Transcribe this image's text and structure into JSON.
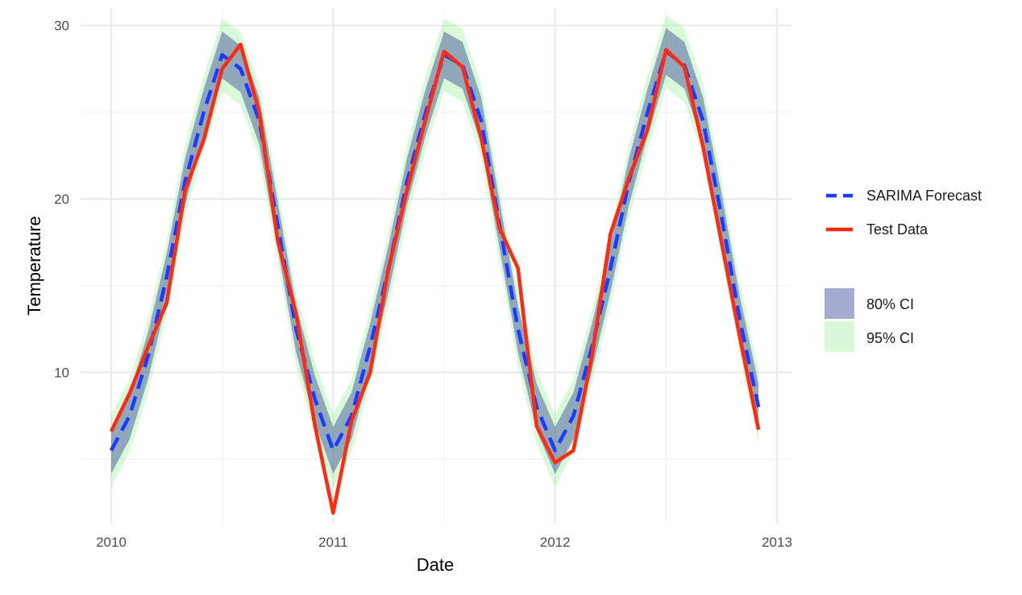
{
  "chart_data": {
    "type": "line",
    "xlabel": "Date",
    "ylabel": "Temperature",
    "xlim": [
      2010,
      2013
    ],
    "ylim": [
      1.3,
      31
    ],
    "x_ticks": [
      2010,
      2011,
      2012,
      2013
    ],
    "x_tick_labels": [
      "2010",
      "2011",
      "2012",
      "2013"
    ],
    "y_ticks": [
      10,
      20,
      30
    ],
    "y_tick_labels": [
      "10",
      "20",
      "30"
    ],
    "grid": true,
    "legend_position": "right",
    "x": [
      2010.0,
      2010.083,
      2010.167,
      2010.25,
      2010.333,
      2010.417,
      2010.5,
      2010.583,
      2010.667,
      2010.75,
      2010.833,
      2010.917,
      2011.0,
      2011.083,
      2011.167,
      2011.25,
      2011.333,
      2011.417,
      2011.5,
      2011.583,
      2011.667,
      2011.75,
      2011.833,
      2011.917,
      2012.0,
      2012.083,
      2012.167,
      2012.25,
      2012.333,
      2012.417,
      2012.5,
      2012.583,
      2012.667,
      2012.75,
      2012.833,
      2012.917
    ],
    "series": [
      {
        "name": "SARIMA Forecast",
        "style": "dashed",
        "color": "#1a3cff",
        "values": [
          5.5,
          7.5,
          11.0,
          15.5,
          21.0,
          25.0,
          28.3,
          27.5,
          24.5,
          18.5,
          12.5,
          8.5,
          5.5,
          7.5,
          11.5,
          16.0,
          21.0,
          25.0,
          28.3,
          27.7,
          24.5,
          18.5,
          12.5,
          8.0,
          5.5,
          7.5,
          11.5,
          16.0,
          21.0,
          25.0,
          28.5,
          27.7,
          24.5,
          19.0,
          13.0,
          8.0
        ]
      },
      {
        "name": "Test Data",
        "style": "solid",
        "color": "#ff2a10",
        "values": [
          6.6,
          8.8,
          11.5,
          14.0,
          20.5,
          23.4,
          27.5,
          28.9,
          25.0,
          17.6,
          13.4,
          7.0,
          1.9,
          7.2,
          10.0,
          16.0,
          20.5,
          24.6,
          28.5,
          27.6,
          23.5,
          18.3,
          16.0,
          6.9,
          4.8,
          5.5,
          11.0,
          18.0,
          21.2,
          24.0,
          28.6,
          27.6,
          23.0,
          17.5,
          12.0,
          6.7
        ]
      }
    ],
    "bands": [
      {
        "name": "80% CI",
        "color": "#2b3990",
        "opacity": 0.42,
        "half_width": 1.35
      },
      {
        "name": "95% CI",
        "color": "#99f29a",
        "opacity": 0.38,
        "half_width": 2.1
      }
    ]
  }
}
